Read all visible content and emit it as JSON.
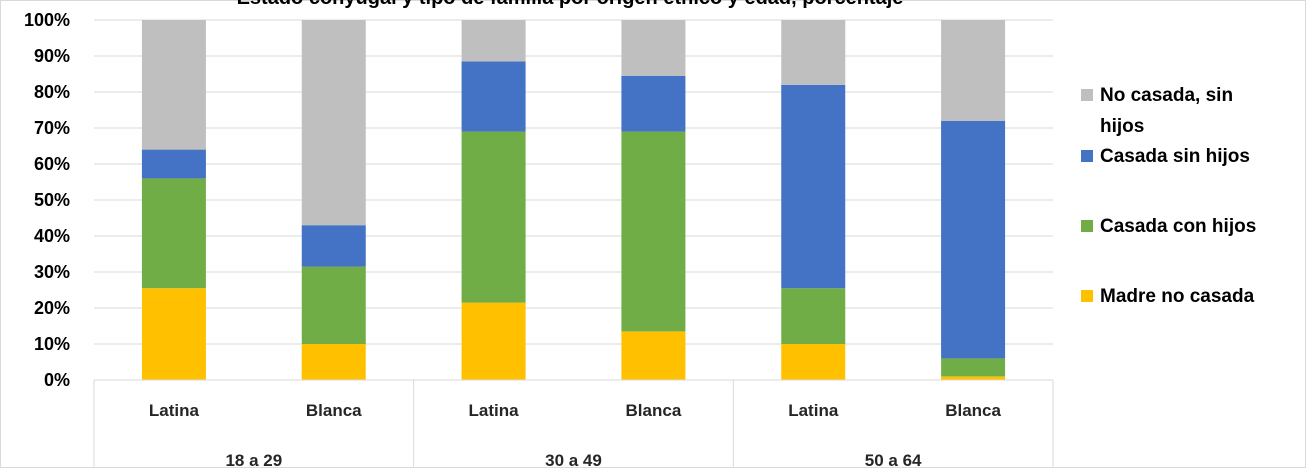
{
  "chart_data": {
    "type": "bar",
    "stacked": true,
    "percent": true,
    "title": "Estado conyugal y tipo de familia por origen étnico y edad, porcentaje",
    "groups": [
      "18 a 29",
      "30 a 49",
      "50 a 64"
    ],
    "categories": [
      "Latina",
      "Blanca",
      "Latina",
      "Blanca",
      "Latina",
      "Blanca"
    ],
    "ylim": [
      0,
      100
    ],
    "yticks": [
      "0%",
      "10%",
      "20%",
      "30%",
      "40%",
      "50%",
      "60%",
      "70%",
      "80%",
      "90%",
      "100%"
    ],
    "grid": true,
    "legend_position": "right",
    "series": [
      {
        "name": "Madre no casada",
        "color": "#FFC000",
        "values": [
          25.5,
          10,
          21.5,
          13.5,
          10,
          1
        ]
      },
      {
        "name": "Casada con hijos",
        "color": "#70AD47",
        "values": [
          30.5,
          21.5,
          47.5,
          55.5,
          15.5,
          5
        ]
      },
      {
        "name": "Casada sin hijos",
        "color": "#4472C4",
        "values": [
          8,
          11.5,
          19.5,
          15.5,
          56.5,
          66
        ]
      },
      {
        "name": "No casada, sin hijos",
        "color": "#BFBFBF",
        "values": [
          36,
          57,
          11.5,
          15.5,
          18,
          28
        ]
      }
    ],
    "legend": [
      {
        "lines": [
          "No casada, sin",
          "hijos"
        ],
        "color": "#BFBFBF"
      },
      {
        "lines": [
          "Casada sin hijos"
        ],
        "color": "#4472C4"
      },
      {
        "lines": [
          "Casada con hijos"
        ],
        "color": "#70AD47"
      },
      {
        "lines": [
          "Madre no casada"
        ],
        "color": "#FFC000"
      }
    ]
  }
}
